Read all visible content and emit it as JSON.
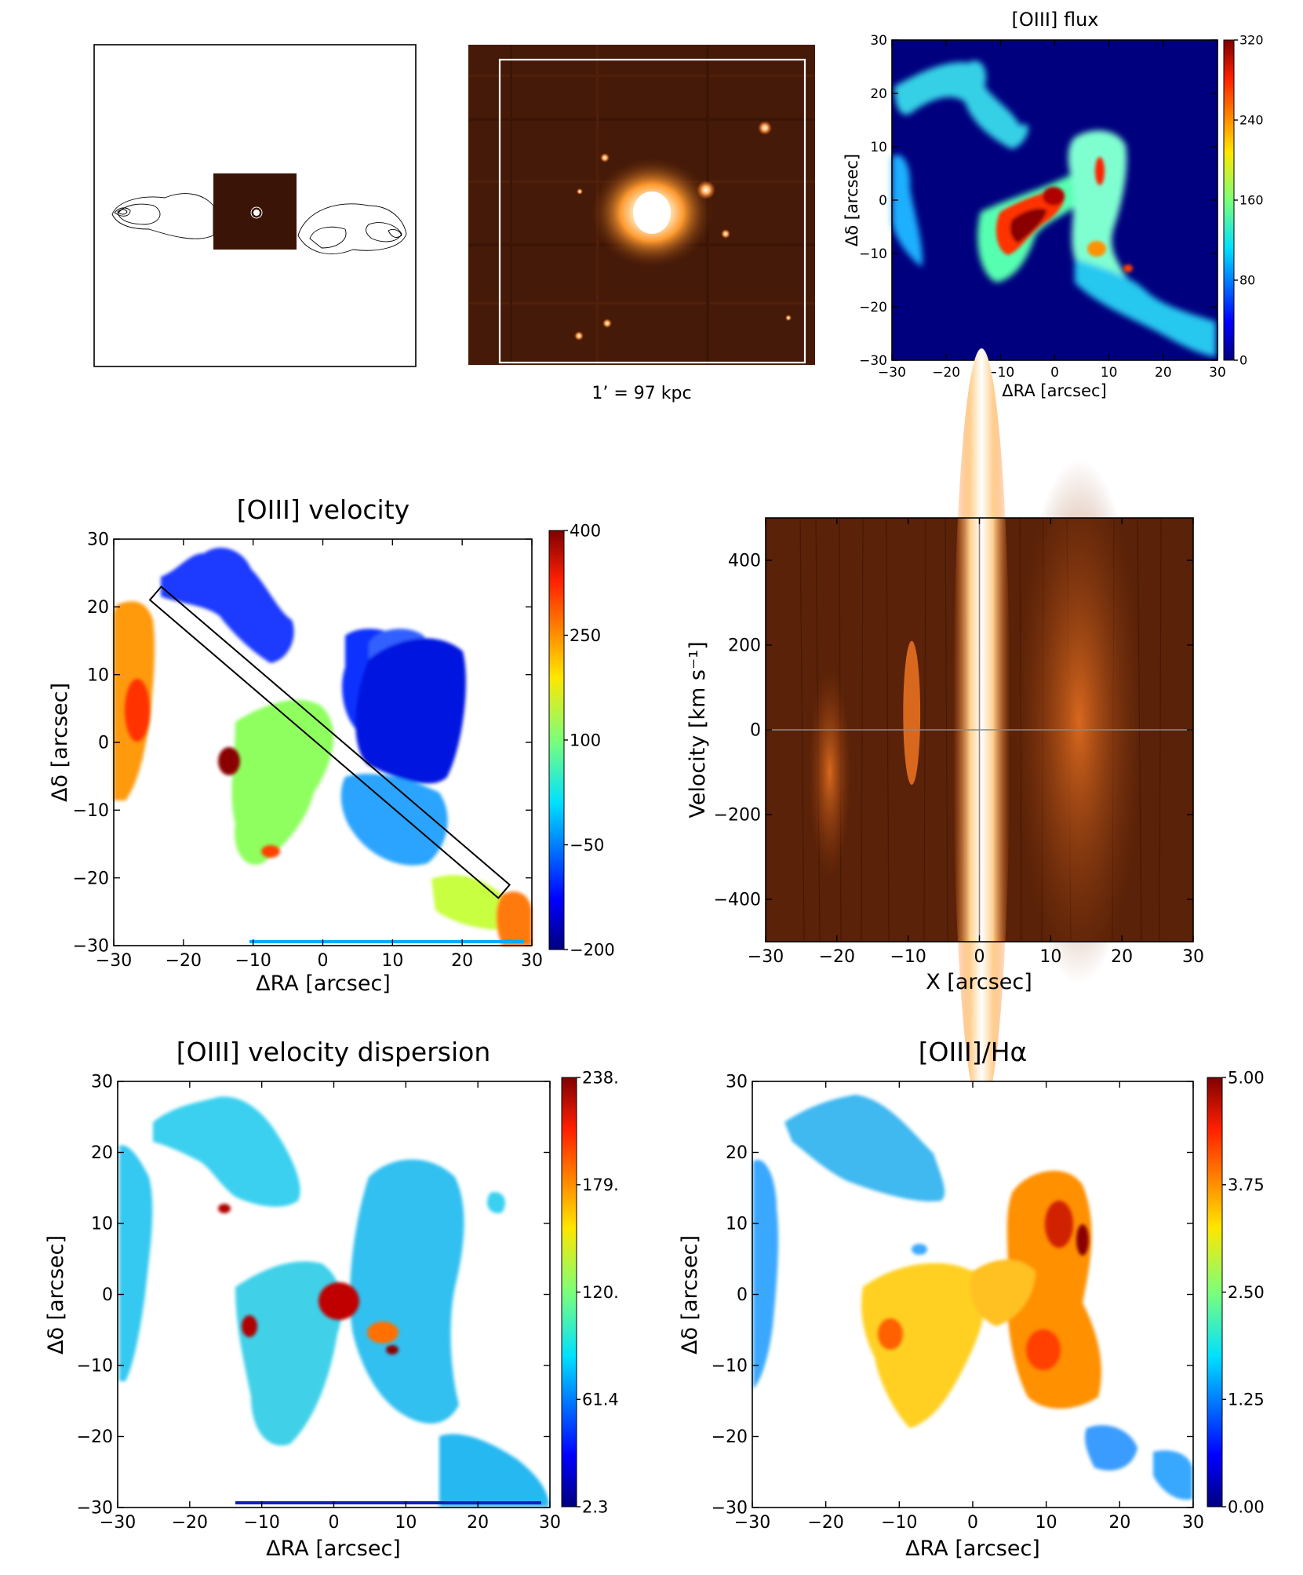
{
  "panels": {
    "contour": {},
    "image": {
      "scale_label": "1’ = 97 kpc"
    },
    "flux": {},
    "velocity": {},
    "pv": {},
    "dispersion": {},
    "ratio": {}
  },
  "chart_data": [
    {
      "id": "flux",
      "type": "heatmap",
      "title": "[OIII] flux",
      "xlabel": "ΔRA [arcsec]",
      "ylabel": "Δδ [arcsec]",
      "xlim": [
        -30,
        30
      ],
      "ylim": [
        -30,
        30
      ],
      "xticks": [
        -30,
        -20,
        -10,
        0,
        10,
        20,
        30
      ],
      "yticks": [
        -30,
        -20,
        -10,
        0,
        10,
        20,
        30
      ],
      "colorbar": {
        "min": 0,
        "max": 320,
        "ticks": [
          "0",
          "80",
          "160",
          "240",
          "320"
        ],
        "colormap": "jet"
      }
    },
    {
      "id": "velocity",
      "type": "heatmap",
      "title": "[OIII] velocity",
      "xlabel": "ΔRA [arcsec]",
      "ylabel": "Δδ [arcsec]",
      "xlim": [
        -30,
        30
      ],
      "ylim": [
        -30,
        30
      ],
      "xticks": [
        -30,
        -20,
        -10,
        0,
        10,
        20,
        30
      ],
      "yticks": [
        -30,
        -20,
        -10,
        0,
        10,
        20,
        30
      ],
      "colorbar": {
        "min": -200,
        "max": 400,
        "ticks": [
          "−200",
          "−50",
          "100",
          "250",
          "400"
        ],
        "colormap": "jet"
      },
      "slit": {
        "from": [
          -24,
          22
        ],
        "to": [
          26,
          -22
        ],
        "width_arcsec": 2.5
      }
    },
    {
      "id": "pv",
      "type": "heatmap",
      "xlabel": "X [arcsec]",
      "ylabel": "Velocity [km s⁻¹]",
      "xlim": [
        -30,
        30
      ],
      "ylim": [
        -500,
        500
      ],
      "xticks": [
        -30,
        -20,
        -10,
        0,
        10,
        20,
        30
      ],
      "yticks": [
        -400,
        -200,
        0,
        200,
        400
      ],
      "crosshair": {
        "x": 0,
        "y": 0
      }
    },
    {
      "id": "dispersion",
      "type": "heatmap",
      "title": "[OIII] velocity dispersion",
      "xlabel": "ΔRA [arcsec]",
      "ylabel": "Δδ [arcsec]",
      "xlim": [
        -30,
        30
      ],
      "ylim": [
        -30,
        30
      ],
      "xticks": [
        -30,
        -20,
        -10,
        0,
        10,
        20,
        30
      ],
      "yticks": [
        -30,
        -20,
        -10,
        0,
        10,
        20,
        30
      ],
      "colorbar": {
        "min": 2.3,
        "max": 238,
        "ticks": [
          "2.3",
          "61.4",
          "120.",
          "179.",
          "238."
        ],
        "colormap": "jet"
      }
    },
    {
      "id": "ratio",
      "type": "heatmap",
      "title": "[OIII]/Hα",
      "xlabel": "ΔRA [arcsec]",
      "ylabel": "Δδ [arcsec]",
      "xlim": [
        -30,
        30
      ],
      "ylim": [
        -30,
        30
      ],
      "xticks": [
        -30,
        -20,
        -10,
        0,
        10,
        20,
        30
      ],
      "yticks": [
        -30,
        -20,
        -10,
        0,
        10,
        20,
        30
      ],
      "colorbar": {
        "min": 0,
        "max": 5,
        "ticks": [
          "0.00",
          "1.25",
          "2.50",
          "3.75",
          "5.00"
        ],
        "colormap": "jet"
      }
    }
  ]
}
